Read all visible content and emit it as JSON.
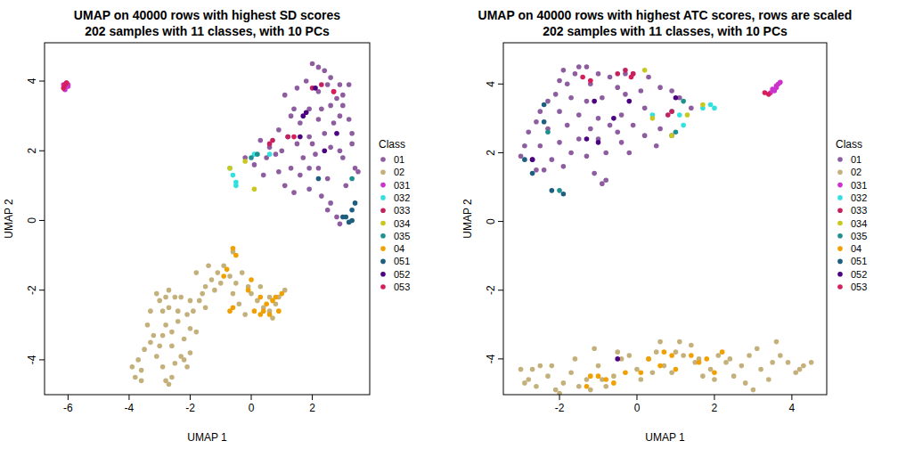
{
  "chart_data": [
    {
      "type": "scatter",
      "title": "UMAP on 40000 rows with highest SD scores",
      "subtitle": "202 samples with 11 classes, with 10 PCs",
      "x_label": "UMAP 1",
      "y_label": "UMAP 2",
      "legend_title": "Class",
      "legend": "right",
      "marker": "circle",
      "xlim": [
        -6.77,
        3.88
      ],
      "ylim": [
        -5.0,
        5.1
      ],
      "xticks": [
        -6,
        -4,
        -2,
        0,
        2
      ],
      "yticks": [
        -4,
        -2,
        0,
        2,
        4
      ],
      "series": [
        {
          "name": "01",
          "color": "#8E5DA0",
          "x": [
            2.0,
            2.2,
            2.4,
            2.6,
            2.5,
            2.9,
            2.2,
            2.8,
            3.0,
            2.9,
            3.2,
            2.7,
            3.3,
            3.5,
            3.0,
            2.6,
            2.9,
            2.2,
            2.5,
            1.9,
            1.6,
            1.3,
            1.7,
            1.0,
            0.8,
            0.6,
            0.5,
            0.9,
            1.1,
            1.4,
            1.9,
            2.3,
            2.6,
            2.8,
            2.9,
            2.5,
            1.6,
            1.9,
            2.2,
            1.3,
            1.1,
            1.4,
            1.9,
            2.3,
            2.6,
            3.2,
            3.3,
            1.5,
            1.2,
            0.9,
            0.3,
            -0.2,
            0.1,
            0.4,
            3.1,
            3.4,
            2.0,
            1.8,
            1.5,
            2.4,
            2.1,
            3.0
          ],
          "values": [
            4.5,
            4.4,
            4.3,
            4.1,
            3.9,
            3.9,
            3.7,
            3.5,
            3.3,
            3.0,
            2.9,
            2.8,
            2.2,
            1.4,
            1.8,
            2.1,
            2.0,
            1.5,
            1.2,
            1.5,
            1.3,
            1.5,
            1.8,
            2.0,
            1.9,
            2.1,
            1.8,
            1.4,
            1.0,
            0.8,
            0.9,
            0.7,
            0.5,
            0.1,
            -0.1,
            0.3,
            2.8,
            2.4,
            2.9,
            3.0,
            3.6,
            3.2,
            3.2,
            3.2,
            3.3,
            3.9,
            2.5,
            2.2,
            2.4,
            2.6,
            2.3,
            1.8,
            1.6,
            1.3,
            1.0,
            1.5,
            2.2,
            4.0,
            3.8,
            2.5,
            1.9,
            3.6
          ]
        },
        {
          "name": "02",
          "color": "#C4B07B",
          "x": [
            -3.9,
            -3.8,
            -3.7,
            -3.6,
            -3.5,
            -3.3,
            -3.4,
            -3.1,
            -2.9,
            -2.8,
            -2.7,
            -2.6,
            -2.5,
            -2.3,
            -2.2,
            -2.0,
            -2.2,
            -2.0,
            -1.9,
            -1.7,
            -1.5,
            -1.3,
            -1.1,
            -1.2,
            -1.6,
            -2.1,
            -2.4,
            -2.6,
            -2.8,
            -2.9,
            -3.0,
            -3.1,
            -2.7,
            -2.5,
            -2.3,
            -2.0,
            -2.7,
            -2.9,
            -3.2,
            -2.6,
            -3.0,
            -2.4,
            -0.9,
            -0.7,
            -0.5,
            -0.3,
            -0.1,
            0.0,
            0.2,
            0.4,
            0.6,
            0.8,
            0.9,
            1.1,
            0.6,
            -0.4,
            -0.2,
            -1.0,
            -1.8,
            -1.4,
            -0.6,
            -2.8,
            -3.3,
            -1.8,
            -2.1,
            -3.6,
            -1.5,
            -0.6,
            0.7,
            0.3
          ],
          "values": [
            -4.2,
            -4.5,
            -4.0,
            -4.6,
            -3.7,
            -3.5,
            -3.0,
            -3.9,
            -4.2,
            -4.6,
            -4.7,
            -4.5,
            -4.1,
            -3.9,
            -4.0,
            -3.8,
            -3.4,
            -3.1,
            -2.6,
            -2.3,
            -1.9,
            -1.7,
            -1.5,
            -2.0,
            -2.1,
            -2.7,
            -2.9,
            -3.2,
            -3.0,
            -2.6,
            -2.3,
            -2.1,
            -2.5,
            -2.2,
            -2.2,
            -2.3,
            -2.0,
            -3.3,
            -3.3,
            -3.6,
            -3.6,
            -2.6,
            -1.3,
            -1.6,
            -1.8,
            -1.5,
            -1.9,
            -2.1,
            -2.3,
            -2.5,
            -2.6,
            -2.4,
            -2.2,
            -2.0,
            -2.2,
            -2.4,
            -2.7,
            -1.8,
            -1.5,
            -1.3,
            -0.9,
            -2.2,
            -2.6,
            -3.2,
            -4.2,
            -4.3,
            -2.5,
            -2.1,
            -2.8,
            -1.9
          ]
        },
        {
          "name": "031",
          "color": "#CC33CC",
          "x": [
            -6.1,
            -6.0,
            -6.15,
            -6.05,
            -6.1,
            -6.0
          ],
          "values": [
            3.8,
            3.85,
            3.9,
            3.95,
            3.75,
            3.9
          ]
        },
        {
          "name": "032",
          "color": "#33E0E0",
          "x": [
            -0.7,
            -0.6,
            -0.5,
            -0.5,
            0.6,
            0.1
          ],
          "values": [
            1.5,
            1.3,
            1.1,
            1.0,
            1.9,
            1.9
          ]
        },
        {
          "name": "033",
          "color": "#C4225E",
          "x": [
            2.0,
            2.7,
            0.7,
            0.6,
            1.2,
            2.3
          ],
          "values": [
            3.8,
            3.7,
            2.3,
            2.2,
            2.4,
            3.9
          ]
        },
        {
          "name": "034",
          "color": "#C8C81E",
          "x": [
            -0.7,
            0.1,
            -0.2
          ],
          "values": [
            1.5,
            0.9,
            1.7
          ]
        },
        {
          "name": "035",
          "color": "#1E9090",
          "x": [
            0.0,
            0.2,
            3.3
          ],
          "values": [
            1.8,
            1.9,
            1.2
          ]
        },
        {
          "name": "04",
          "color": "#F0A000",
          "x": [
            -0.6,
            -0.5,
            -0.8,
            0.0,
            -0.7,
            -0.6,
            0.1,
            0.3,
            0.4,
            0.6,
            0.5,
            0.7,
            0.9,
            0.8,
            1.0,
            0.3,
            -0.1,
            -0.9
          ],
          "values": [
            -0.8,
            -1.0,
            -1.4,
            -1.7,
            -2.6,
            -2.5,
            -2.6,
            -2.7,
            -2.6,
            -2.7,
            -2.4,
            -2.3,
            -2.6,
            -2.2,
            -2.1,
            -2.2,
            -2.0,
            -1.6
          ]
        },
        {
          "name": "051",
          "color": "#1E5F7F",
          "x": [
            3.3,
            3.1,
            3.3,
            3.4,
            2.2,
            3.0,
            3.2
          ],
          "values": [
            0.0,
            0.1,
            0.3,
            0.5,
            1.2,
            0.1,
            -0.05
          ]
        },
        {
          "name": "052",
          "color": "#4B0082",
          "x": [
            2.1,
            1.7,
            1.8,
            2.8,
            2.4,
            1.6
          ],
          "values": [
            3.8,
            3.0,
            3.1,
            2.5,
            2.0,
            2.4
          ]
        },
        {
          "name": "053",
          "color": "#D61E5B",
          "x": [
            -6.1,
            -6.05,
            -6.15,
            2.7,
            1.4
          ],
          "values": [
            3.9,
            3.95,
            3.8,
            3.7,
            2.4
          ]
        }
      ]
    },
    {
      "type": "scatter",
      "title": "UMAP on 40000 rows with highest ATC scores, rows are scaled",
      "subtitle": "202 samples with 11 classes, with 10 PCs",
      "x_label": "UMAP 1",
      "y_label": "UMAP 2",
      "legend_title": "Class",
      "legend": "right",
      "marker": "circle",
      "xlim": [
        -3.45,
        4.9
      ],
      "ylim": [
        -5.04,
        5.2
      ],
      "xticks": [
        -2,
        0,
        2,
        4
      ],
      "yticks": [
        -4,
        -2,
        0,
        2,
        4
      ],
      "series": [
        {
          "name": "01",
          "color": "#8E5DA0",
          "x": [
            -1.5,
            -1.3,
            -1.6,
            -2.0,
            -1.0,
            -0.7,
            -0.3,
            -0.1,
            0.3,
            -1.8,
            -1.2,
            -0.5,
            -2.1,
            -2.3,
            -1.7,
            -1.3,
            -0.9,
            -0.3,
            0.1,
            0.6,
            0.9,
            1.1,
            -2.5,
            -2.0,
            -1.5,
            -1.0,
            -0.4,
            0.2,
            -2.6,
            -2.8,
            -2.3,
            -1.8,
            -1.2,
            -0.7,
            -0.1,
            0.6,
            -2.9,
            -2.5,
            -2.0,
            -1.5,
            -1.0,
            -0.4,
            0.2,
            -3.0,
            -2.7,
            -2.2,
            -1.7,
            -1.3,
            -0.8,
            -0.2,
            -2.4,
            -1.9,
            -1.1,
            -0.9,
            -0.8,
            -2.6,
            0.5,
            0.9,
            1.4,
            -1.9,
            -0.5
          ],
          "values": [
            4.5,
            4.5,
            4.3,
            4.1,
            4.3,
            4.2,
            4.3,
            4.3,
            4.2,
            4.0,
            4.0,
            3.9,
            3.7,
            3.5,
            3.6,
            3.5,
            3.6,
            3.7,
            3.8,
            3.9,
            3.8,
            3.6,
            3.2,
            3.2,
            3.1,
            3.0,
            3.1,
            3.3,
            2.9,
            2.6,
            2.7,
            2.8,
            2.7,
            2.8,
            2.8,
            2.7,
            2.2,
            2.2,
            2.3,
            2.4,
            2.4,
            2.3,
            2.5,
            1.9,
            1.8,
            1.8,
            2.0,
            1.9,
            2.0,
            2.0,
            1.5,
            1.6,
            1.4,
            1.1,
            1.2,
            1.5,
            2.2,
            2.5,
            3.3,
            4.4,
            2.6
          ]
        },
        {
          "name": "02",
          "color": "#C4B07B",
          "x": [
            -3.0,
            -2.8,
            -2.6,
            -2.5,
            -2.3,
            -2.1,
            -2.0,
            -1.9,
            -1.7,
            -1.5,
            -1.3,
            -1.1,
            -1.0,
            -0.8,
            -0.6,
            -0.4,
            -0.2,
            0.0,
            0.1,
            0.3,
            0.5,
            0.7,
            0.9,
            1.1,
            1.2,
            1.4,
            1.5,
            1.7,
            1.9,
            2.1,
            2.3,
            2.5,
            2.7,
            2.9,
            3.1,
            3.2,
            3.4,
            3.6,
            3.7,
            3.9,
            4.1,
            4.3,
            4.5,
            -2.7,
            -2.2,
            -1.6,
            -0.5,
            1.0,
            2.0,
            2.8,
            3.0,
            4.2,
            -1.2,
            0.4,
            1.6,
            2.4,
            -2.9,
            3.5,
            0.6,
            -0.9
          ],
          "values": [
            -4.3,
            -4.6,
            -4.8,
            -4.2,
            -4.5,
            -4.9,
            -5.0,
            -4.7,
            -4.4,
            -4.8,
            -4.6,
            -3.7,
            -4.2,
            -4.8,
            -4.5,
            -4.0,
            -3.9,
            -4.3,
            -4.6,
            -4.0,
            -3.8,
            -4.2,
            -4.4,
            -3.5,
            -3.9,
            -3.6,
            -4.1,
            -4.5,
            -4.3,
            -3.9,
            -4.1,
            -4.5,
            -4.2,
            -3.9,
            -3.7,
            -4.3,
            -4.6,
            -3.5,
            -3.9,
            -4.1,
            -4.4,
            -4.2,
            -4.1,
            -4.3,
            -4.2,
            -4.0,
            -3.8,
            -3.8,
            -4.6,
            -4.7,
            -4.9,
            -4.3,
            -4.9,
            -4.4,
            -4.0,
            -4.0,
            -4.7,
            -4.1,
            -3.5,
            -4.6
          ]
        },
        {
          "name": "031",
          "color": "#CC33CC",
          "x": [
            3.5,
            3.6,
            3.65,
            3.7,
            3.55,
            3.6,
            3.45
          ],
          "values": [
            3.85,
            3.9,
            4.0,
            4.05,
            3.8,
            3.95,
            3.75
          ]
        },
        {
          "name": "032",
          "color": "#33E0E0",
          "x": [
            0.9,
            1.1,
            1.7,
            1.9,
            2.0,
            1.2,
            0.4
          ],
          "values": [
            3.2,
            3.1,
            3.3,
            3.4,
            3.3,
            2.8,
            3.1
          ]
        },
        {
          "name": "033",
          "color": "#C4225E",
          "x": [
            -0.5,
            -0.3,
            -0.1,
            0.9,
            0.8
          ],
          "values": [
            4.3,
            4.4,
            4.3,
            3.2,
            3.1
          ]
        },
        {
          "name": "034",
          "color": "#C8C81E",
          "x": [
            0.2,
            0.4,
            1.3,
            0.9,
            1.7
          ],
          "values": [
            4.4,
            3.0,
            3.1,
            2.5,
            3.4
          ]
        },
        {
          "name": "035",
          "color": "#1E9090",
          "x": [
            -2.3,
            1.2,
            1.0,
            -2.0
          ],
          "values": [
            2.6,
            3.5,
            2.6,
            0.9
          ]
        },
        {
          "name": "04",
          "color": "#F0A000",
          "x": [
            -1.2,
            -1.0,
            -1.3,
            -0.8,
            -0.3,
            0.3,
            0.6,
            0.7,
            0.9,
            1.0,
            1.4,
            1.6,
            1.8,
            2.0,
            0.1,
            -0.6,
            2.2
          ],
          "values": [
            -4.5,
            -4.5,
            -4.8,
            -4.6,
            -4.4,
            -4.0,
            -4.2,
            -3.8,
            -3.9,
            -4.3,
            -3.9,
            -4.1,
            -4.0,
            -4.4,
            -4.4,
            -4.7,
            -3.8
          ]
        },
        {
          "name": "051",
          "color": "#1E5F7F",
          "x": [
            -2.4,
            -2.9,
            -2.2,
            -1.9,
            -2.7,
            -2.4
          ],
          "values": [
            3.4,
            1.8,
            0.9,
            0.8,
            1.4,
            2.9
          ]
        },
        {
          "name": "052",
          "color": "#4B0082",
          "x": [
            -1.1,
            -1.3,
            -1.0,
            -2.7,
            -0.6,
            -0.2,
            1.0,
            -0.5
          ],
          "values": [
            3.5,
            2.4,
            2.3,
            1.8,
            3.0,
            3.5,
            3.6,
            -4.0
          ]
        },
        {
          "name": "053",
          "color": "#D61E5B",
          "x": [
            -1.2,
            -1.4,
            3.4,
            3.3,
            -0.15
          ],
          "values": [
            4.1,
            4.2,
            3.7,
            3.75,
            4.2
          ]
        }
      ]
    }
  ]
}
